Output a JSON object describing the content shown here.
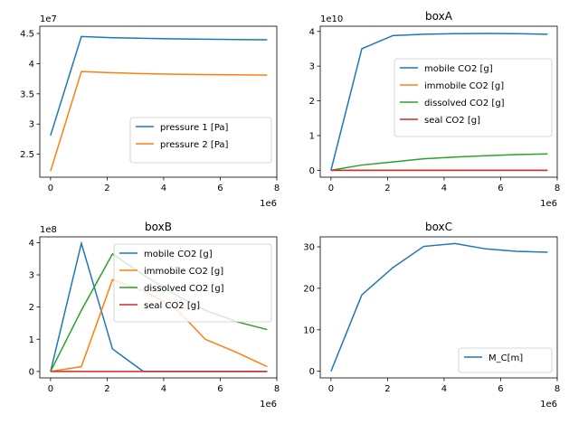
{
  "chart_data": [
    {
      "type": "line",
      "title": "",
      "xlabel": "",
      "ylabel": "",
      "x_multiplier_label": "1e6",
      "y_multiplier_label": "1e7",
      "x_ticks": [
        0,
        2,
        4,
        6,
        8
      ],
      "y_ticks": [
        2.5,
        3.0,
        3.5,
        4.0,
        4.5
      ],
      "xlim": [
        -0.38,
        8.0
      ],
      "ylim": [
        2.12,
        4.62
      ],
      "legend_position": "lower-right",
      "series": [
        {
          "name": "pressure 1 [Pa]",
          "color": "#1f77b4",
          "x": [
            0,
            1.09,
            2.19,
            3.28,
            4.38,
            5.47,
            6.56,
            7.66
          ],
          "y": [
            2.81,
            4.45,
            4.43,
            4.42,
            4.41,
            4.405,
            4.4,
            4.395
          ]
        },
        {
          "name": "pressure 2 [Pa]",
          "color": "#ff7f0e",
          "x": [
            0,
            1.09,
            2.19,
            3.28,
            4.38,
            5.47,
            6.56,
            7.66
          ],
          "y": [
            2.22,
            3.87,
            3.85,
            3.835,
            3.825,
            3.82,
            3.815,
            3.81
          ]
        }
      ]
    },
    {
      "type": "line",
      "title": "boxA",
      "xlabel": "",
      "ylabel": "",
      "x_multiplier_label": "1e6",
      "y_multiplier_label": "1e10",
      "x_ticks": [
        0,
        2,
        4,
        6,
        8
      ],
      "y_ticks": [
        0,
        1,
        2,
        3,
        4
      ],
      "xlim": [
        -0.38,
        8.0
      ],
      "ylim": [
        -0.2,
        4.15
      ],
      "legend_position": "center-right",
      "series": [
        {
          "name": "mobile CO2 [g]",
          "color": "#1f77b4",
          "x": [
            0,
            1.09,
            2.19,
            3.28,
            4.38,
            5.47,
            6.56,
            7.66
          ],
          "y": [
            0,
            3.5,
            3.88,
            3.92,
            3.935,
            3.94,
            3.935,
            3.92
          ]
        },
        {
          "name": "immobile CO2 [g]",
          "color": "#ff7f0e",
          "x": [
            0,
            1.09,
            2.19,
            3.28,
            4.38,
            5.47,
            6.56,
            7.66
          ],
          "y": [
            0,
            0,
            0,
            0,
            0,
            0,
            0,
            0
          ]
        },
        {
          "name": "dissolved CO2 [g]",
          "color": "#2ca02c",
          "x": [
            0,
            1.09,
            2.19,
            3.28,
            4.38,
            5.47,
            6.56,
            7.66
          ],
          "y": [
            0,
            0.15,
            0.24,
            0.33,
            0.38,
            0.42,
            0.45,
            0.47
          ]
        },
        {
          "name": "seal CO2 [g]",
          "color": "#d62728",
          "x": [
            0,
            1.09,
            2.19,
            3.28,
            4.38,
            5.47,
            6.56,
            7.66
          ],
          "y": [
            0,
            0,
            0,
            0,
            0,
            0,
            0,
            0
          ]
        }
      ]
    },
    {
      "type": "line",
      "title": "boxB",
      "xlabel": "",
      "ylabel": "",
      "x_multiplier_label": "1e6",
      "y_multiplier_label": "1e8",
      "x_ticks": [
        0,
        2,
        4,
        6,
        8
      ],
      "y_ticks": [
        0,
        1,
        2,
        3,
        4
      ],
      "xlim": [
        -0.38,
        8.0
      ],
      "ylim": [
        -0.2,
        4.18
      ],
      "legend_position": "upper-right",
      "series": [
        {
          "name": "mobile CO2 [g]",
          "color": "#1f77b4",
          "x": [
            0,
            1.09,
            2.19,
            3.28,
            4.38,
            5.47,
            6.56,
            7.66
          ],
          "y": [
            0,
            3.98,
            0.7,
            0,
            0,
            0,
            0,
            0
          ]
        },
        {
          "name": "immobile CO2 [g]",
          "color": "#ff7f0e",
          "x": [
            0,
            1.09,
            2.19,
            3.28,
            4.38,
            5.47,
            6.56,
            7.66
          ],
          "y": [
            0,
            0.15,
            2.85,
            2.5,
            2.0,
            1.0,
            0.6,
            0.15
          ]
        },
        {
          "name": "dissolved CO2 [g]",
          "color": "#2ca02c",
          "x": [
            0,
            1.09,
            2.19,
            3.28,
            4.38,
            5.47,
            6.56,
            7.66
          ],
          "y": [
            0,
            1.9,
            3.65,
            3.0,
            2.4,
            1.9,
            1.55,
            1.3
          ]
        },
        {
          "name": "seal CO2 [g]",
          "color": "#d62728",
          "x": [
            0,
            1.09,
            2.19,
            3.28,
            4.38,
            5.47,
            6.56,
            7.66
          ],
          "y": [
            0,
            0,
            0,
            0,
            0,
            0,
            0,
            0
          ]
        }
      ]
    },
    {
      "type": "line",
      "title": "boxC",
      "xlabel": "",
      "ylabel": "",
      "x_multiplier_label": "1e6",
      "y_multiplier_label": "",
      "x_ticks": [
        0,
        2,
        4,
        6,
        8
      ],
      "y_ticks": [
        0,
        10,
        20,
        30
      ],
      "xlim": [
        -0.38,
        8.0
      ],
      "ylim": [
        -1.6,
        32.4
      ],
      "legend_position": "lower-right",
      "series": [
        {
          "name": "M_C[m]",
          "color": "#1f77b4",
          "x": [
            0,
            1.09,
            2.19,
            3.28,
            4.38,
            5.47,
            6.56,
            7.66
          ],
          "y": [
            0,
            18.4,
            25.0,
            30.1,
            30.8,
            29.5,
            28.9,
            28.7
          ]
        }
      ]
    }
  ]
}
